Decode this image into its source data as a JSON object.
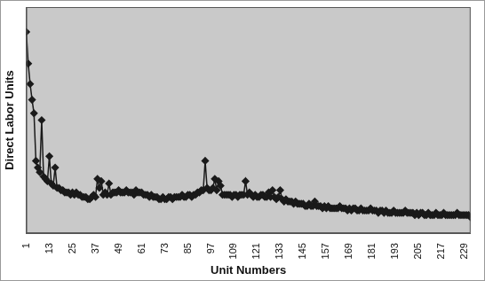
{
  "chart_data": {
    "type": "line",
    "x_label": "Unit Numbers",
    "y_label": "Direct Labor Units",
    "categories": [
      "1",
      null,
      null,
      null,
      null,
      null,
      null,
      null,
      null,
      null,
      null,
      null,
      "13",
      null,
      null,
      null,
      null,
      null,
      null,
      null,
      null,
      null,
      null,
      null,
      "25",
      null,
      null,
      null,
      null,
      null,
      null,
      null,
      null,
      null,
      null,
      null,
      "37",
      null,
      null,
      null,
      null,
      null,
      null,
      null,
      null,
      null,
      null,
      null,
      "49",
      null,
      null,
      null,
      null,
      null,
      null,
      null,
      null,
      null,
      null,
      null,
      "61",
      null,
      null,
      null,
      null,
      null,
      null,
      null,
      null,
      null,
      null,
      null,
      "73",
      null,
      null,
      null,
      null,
      null,
      null,
      null,
      null,
      null,
      null,
      null,
      "85",
      null,
      null,
      null,
      null,
      null,
      null,
      null,
      null,
      null,
      null,
      null,
      "97",
      null,
      null,
      null,
      null,
      null,
      null,
      null,
      null,
      null,
      null,
      null,
      "109",
      null,
      null,
      null,
      null,
      null,
      null,
      null,
      null,
      null,
      null,
      null,
      "121",
      null,
      null,
      null,
      null,
      null,
      null,
      null,
      null,
      null,
      null,
      null,
      "133",
      null,
      null,
      null,
      null,
      null,
      null,
      null,
      null,
      null,
      null,
      null,
      "145",
      null,
      null,
      null,
      null,
      null,
      null,
      null,
      null,
      null,
      null,
      null,
      "157",
      null,
      null,
      null,
      null,
      null,
      null,
      null,
      null,
      null,
      null,
      null,
      "169",
      null,
      null,
      null,
      null,
      null,
      null,
      null,
      null,
      null,
      null,
      null,
      "181",
      null,
      null,
      null,
      null,
      null,
      null,
      null,
      null,
      null,
      null,
      null,
      "193",
      null,
      null,
      null,
      null,
      null,
      null,
      null,
      null,
      null,
      null,
      null,
      "205",
      null,
      null,
      null,
      null,
      null,
      null,
      null,
      null,
      null,
      null,
      null,
      "217",
      null,
      null,
      null,
      null,
      null,
      null,
      null,
      null,
      null,
      null,
      null,
      "229",
      null,
      null,
      null
    ],
    "values": [
      89,
      75,
      66,
      59,
      53,
      32,
      29,
      27,
      50,
      25,
      24,
      23,
      34,
      22,
      21,
      29,
      20,
      20,
      19,
      19,
      18,
      18,
      18,
      17,
      18,
      17,
      18,
      17,
      17,
      16,
      16,
      16,
      15,
      15,
      16,
      17,
      16,
      24,
      20,
      23,
      17,
      18,
      17,
      22,
      17,
      18,
      18,
      18,
      19,
      18,
      18,
      18,
      19,
      18,
      18,
      18,
      17,
      19,
      18,
      18,
      18,
      17,
      17,
      17,
      16,
      17,
      16,
      16,
      16,
      15,
      15,
      16,
      15,
      15,
      16,
      16,
      15,
      16,
      16,
      16,
      16,
      17,
      16,
      16,
      17,
      17,
      16,
      17,
      17,
      18,
      18,
      19,
      19,
      32,
      20,
      19,
      19,
      20,
      24,
      19,
      23,
      21,
      17,
      17,
      17,
      17,
      17,
      16,
      17,
      17,
      16,
      17,
      17,
      17,
      23,
      17,
      18,
      17,
      16,
      17,
      16,
      16,
      17,
      17,
      16,
      16,
      18,
      16,
      19,
      16,
      15,
      16,
      19,
      15,
      14,
      15,
      14,
      14,
      14,
      13,
      14,
      13,
      13,
      13,
      13,
      12,
      12,
      13,
      12,
      12,
      14,
      12,
      12,
      12,
      11,
      12,
      11,
      12,
      11,
      11,
      11,
      11,
      11,
      12,
      11,
      11,
      11,
      10,
      11,
      10,
      11,
      11,
      10,
      10,
      11,
      10,
      10,
      10,
      10,
      11,
      10,
      10,
      10,
      9,
      10,
      10,
      9,
      10,
      9,
      9,
      9,
      10,
      9,
      9,
      9,
      9,
      9,
      10,
      9,
      9,
      9,
      9,
      8,
      9,
      8,
      9,
      9,
      8,
      8,
      9,
      8,
      8,
      8,
      9,
      8,
      8,
      8,
      9,
      8,
      8,
      8,
      8,
      8,
      8,
      9,
      8,
      8,
      8,
      8,
      8,
      8,
      7
    ],
    "color": "#1a1a1a",
    "marker": "diamond",
    "ylim": [
      0,
      100
    ],
    "tick_labels": "x",
    "grid": false
  }
}
